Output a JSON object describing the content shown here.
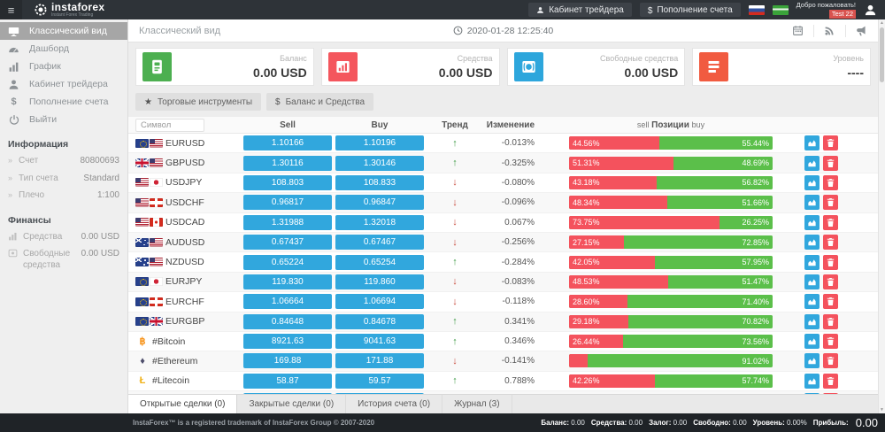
{
  "topbar": {
    "logo_text": "instaforex",
    "logo_tagline": "Instant Forex Trading",
    "cabinet_button": "Кабинет трейдера",
    "deposit_button": "Пополнение счета",
    "welcome_line1": "Добро пожаловать!",
    "welcome_line2": "Test 22"
  },
  "sidebar": {
    "items": [
      {
        "label": "Классический вид",
        "icon": "desktop-icon",
        "active": true
      },
      {
        "label": "Дашборд",
        "icon": "dashboard-icon",
        "active": false
      },
      {
        "label": "График",
        "icon": "bar-chart-icon",
        "active": false
      },
      {
        "label": "Кабинет трейдера",
        "icon": "user-icon",
        "active": false
      },
      {
        "label": "Пополнение счета",
        "icon": "dollar-icon",
        "active": false
      },
      {
        "label": "Выйти",
        "icon": "power-icon",
        "active": false
      }
    ],
    "info": {
      "title": "Информация",
      "rows": [
        {
          "label": "Счет",
          "value": "80800693"
        },
        {
          "label": "Тип счета",
          "value": "Standard"
        },
        {
          "label": "Плечо",
          "value": "1:100"
        }
      ]
    },
    "finance": {
      "title": "Финансы",
      "rows": [
        {
          "label": "Средства",
          "value": "0.00 USD",
          "icon": "mini-chart-icon"
        },
        {
          "label": "Свободные средства",
          "value": "0.00 USD",
          "icon": "mini-coins-icon"
        }
      ]
    }
  },
  "main": {
    "page_title": "Классический вид",
    "timestamp": "2020-01-28 12:25:40",
    "stat_cards": [
      {
        "label": "Баланс",
        "value": "0.00 USD",
        "color": "#4caf50",
        "icon": "wallet-icon"
      },
      {
        "label": "Средства",
        "value": "0.00 USD",
        "color": "#f4565d",
        "icon": "chart-card-icon"
      },
      {
        "label": "Свободные средства",
        "value": "0.00 USD",
        "color": "#2da6dc",
        "icon": "eye-icon"
      },
      {
        "label": "Уровень",
        "value": "----",
        "color": "#f15b40",
        "icon": "list-icon"
      }
    ],
    "toolbar": [
      {
        "label": "Торговые инструменты",
        "icon": "star-icon",
        "glyph": "★"
      },
      {
        "label": "Баланс и Средства",
        "icon": "dollar-icon",
        "glyph": "$"
      }
    ],
    "table": {
      "search_placeholder": "Символ",
      "col_sell": "Sell",
      "col_buy": "Buy",
      "col_trend": "Тренд",
      "col_change": "Изменение",
      "col_pos_left": "sell",
      "col_pos_center": "Позиции",
      "col_pos_right": "buy",
      "rows": [
        {
          "symbol": "EURUSD",
          "flags": [
            "eu",
            "us"
          ],
          "sell": "1.10166",
          "buy": "1.10196",
          "trend": "up",
          "change": "-0.013%",
          "sell_pct": "44.56%",
          "buy_pct": "55.44%",
          "sell_val": 44.56
        },
        {
          "symbol": "GBPUSD",
          "flags": [
            "gb",
            "us"
          ],
          "sell": "1.30116",
          "buy": "1.30146",
          "trend": "up",
          "change": "-0.325%",
          "sell_pct": "51.31%",
          "buy_pct": "48.69%",
          "sell_val": 51.31
        },
        {
          "symbol": "USDJPY",
          "flags": [
            "us",
            "jp"
          ],
          "sell": "108.803",
          "buy": "108.833",
          "trend": "down",
          "change": "-0.080%",
          "sell_pct": "43.18%",
          "buy_pct": "56.82%",
          "sell_val": 43.18
        },
        {
          "symbol": "USDCHF",
          "flags": [
            "us",
            "ch"
          ],
          "sell": "0.96817",
          "buy": "0.96847",
          "trend": "down",
          "change": "-0.096%",
          "sell_pct": "48.34%",
          "buy_pct": "51.66%",
          "sell_val": 48.34
        },
        {
          "symbol": "USDCAD",
          "flags": [
            "us",
            "ca"
          ],
          "sell": "1.31988",
          "buy": "1.32018",
          "trend": "down",
          "change": "0.067%",
          "sell_pct": "73.75%",
          "buy_pct": "26.25%",
          "sell_val": 73.75
        },
        {
          "symbol": "AUDUSD",
          "flags": [
            "au",
            "us"
          ],
          "sell": "0.67437",
          "buy": "0.67467",
          "trend": "down",
          "change": "-0.256%",
          "sell_pct": "27.15%",
          "buy_pct": "72.85%",
          "sell_val": 27.15
        },
        {
          "symbol": "NZDUSD",
          "flags": [
            "nz",
            "us"
          ],
          "sell": "0.65224",
          "buy": "0.65254",
          "trend": "up",
          "change": "-0.284%",
          "sell_pct": "42.05%",
          "buy_pct": "57.95%",
          "sell_val": 42.05
        },
        {
          "symbol": "EURJPY",
          "flags": [
            "eu",
            "jp"
          ],
          "sell": "119.830",
          "buy": "119.860",
          "trend": "down",
          "change": "-0.083%",
          "sell_pct": "48.53%",
          "buy_pct": "51.47%",
          "sell_val": 48.53
        },
        {
          "symbol": "EURCHF",
          "flags": [
            "eu",
            "ch"
          ],
          "sell": "1.06664",
          "buy": "1.06694",
          "trend": "down",
          "change": "-0.118%",
          "sell_pct": "28.60%",
          "buy_pct": "71.40%",
          "sell_val": 28.6
        },
        {
          "symbol": "EURGBP",
          "flags": [
            "eu",
            "gb"
          ],
          "sell": "0.84648",
          "buy": "0.84678",
          "trend": "up",
          "change": "0.341%",
          "sell_pct": "29.18%",
          "buy_pct": "70.82%",
          "sell_val": 29.18
        },
        {
          "symbol": "#Bitcoin",
          "crypto": "btc",
          "sell": "8921.63",
          "buy": "9041.63",
          "trend": "up",
          "change": "0.346%",
          "sell_pct": "26.44%",
          "buy_pct": "73.56%",
          "sell_val": 26.44
        },
        {
          "symbol": "#Ethereum",
          "crypto": "eth",
          "sell": "169.88",
          "buy": "171.88",
          "trend": "down",
          "change": "-0.141%",
          "sell_pct": "",
          "buy_pct": "91.02%",
          "sell_val": 8.98
        },
        {
          "symbol": "#Litecoin",
          "crypto": "ltc",
          "sell": "58.87",
          "buy": "59.57",
          "trend": "up",
          "change": "0.788%",
          "sell_pct": "42.26%",
          "buy_pct": "57.74%",
          "sell_val": 42.26
        },
        {
          "symbol": "",
          "crypto": "gen",
          "sell": "",
          "buy": "",
          "trend": "down",
          "change": "",
          "sell_pct": "",
          "buy_pct": "",
          "sell_val": 4
        }
      ]
    },
    "tabs": [
      {
        "label": "Открытые сделки (0)",
        "active": true
      },
      {
        "label": "Закрытые сделки (0)",
        "active": false
      },
      {
        "label": "История счета (0)",
        "active": false
      },
      {
        "label": "Журнал (3)",
        "active": false
      }
    ]
  },
  "footer": {
    "copyright": "InstaForex™ is a registered trademark of InstaForex Group © 2007-2020",
    "stats": [
      {
        "label": "Баланс:",
        "value": "0.00"
      },
      {
        "label": "Средства:",
        "value": "0.00"
      },
      {
        "label": "Залог:",
        "value": "0.00"
      },
      {
        "label": "Свободно:",
        "value": "0.00"
      },
      {
        "label": "Уровень:",
        "value": "0.00%"
      },
      {
        "label": "Прибыль:",
        "value": ""
      }
    ],
    "profit_value": "0.00"
  }
}
